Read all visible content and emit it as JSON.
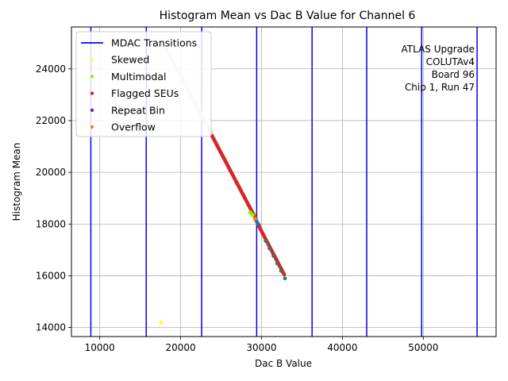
{
  "chart_data": {
    "type": "scatter",
    "title": "Histogram Mean vs Dac B Value for Channel 6",
    "xlabel": "Dac B Value",
    "ylabel": "Histogram Mean",
    "xlim": [
      6500,
      59000
    ],
    "ylim": [
      13650,
      25620
    ],
    "xticks": [
      10000,
      20000,
      30000,
      40000,
      50000
    ],
    "yticks": [
      14000,
      16000,
      18000,
      20000,
      22000,
      24000
    ],
    "grid": true,
    "legend_position": "top-left",
    "legend": [
      {
        "label": "MDAC Transitions",
        "kind": "line",
        "color": "#0000ff"
      },
      {
        "label": "Skewed",
        "kind": "point",
        "color": "#ffff33"
      },
      {
        "label": "Multimodal",
        "kind": "point",
        "color": "#7cfc00"
      },
      {
        "label": "Flagged SEUs",
        "kind": "point",
        "color": "#d62728"
      },
      {
        "label": "Repeat Bin",
        "kind": "point",
        "color": "#7b1fa2"
      },
      {
        "label": "Overflow",
        "kind": "point",
        "color": "#ff7f0e"
      }
    ],
    "annotation": [
      "ATLAS Upgrade",
      "COLUTAv4",
      "Board 96",
      "Chip 1, Run 47"
    ],
    "mdac_transitions": [
      8900,
      15750,
      22600,
      29400,
      36250,
      43000,
      49800,
      56650
    ],
    "series": [
      {
        "name": "Calibration points (faded)",
        "color": "#f4c9c5",
        "x_start": 17700,
        "x_end": 23900,
        "y_start": 25050,
        "y_end": 21450,
        "n": 70
      },
      {
        "name": "Flagged SEUs",
        "color": "#d62728",
        "x_start": 23900,
        "x_end": 29300,
        "y_start": 21400,
        "y_end": 18200,
        "n": 60
      },
      {
        "name": "Calibration points (blue)",
        "color": "#1f77b4",
        "x_start": 29300,
        "x_end": 29700,
        "y_start": 18150,
        "y_end": 17950,
        "n": 5
      },
      {
        "name": "Flagged SEUs",
        "color": "#d62728",
        "x_start": 29700,
        "x_end": 32800,
        "y_start": 17900,
        "y_end": 16050,
        "n": 35
      },
      {
        "name": "Calibration points (teal)",
        "color": "#2a7f62",
        "x_start": 30500,
        "x_end": 32900,
        "y_start": 17350,
        "y_end": 15900,
        "n": 6
      }
    ],
    "extra_points": [
      {
        "x": 28600,
        "y": 18450,
        "color": "#7cfc00"
      },
      {
        "x": 28900,
        "y": 18350,
        "color": "#7cfc00"
      },
      {
        "x": 29200,
        "y": 18200,
        "color": "#ff7f0e"
      },
      {
        "x": 17600,
        "y": 14200,
        "color": "#ffff33"
      }
    ]
  }
}
